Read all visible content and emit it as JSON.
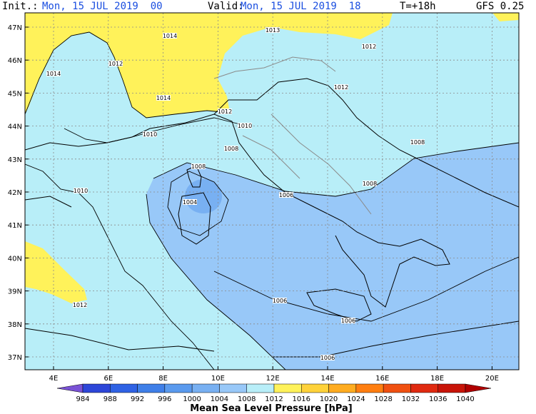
{
  "header": {
    "init_label": "Init.:",
    "init_value": "Mon, 15 JUL 2019  00",
    "valid_label": "Valid:",
    "valid_value": "Mon, 15 JUL 2019  18",
    "lead": "T=+18h",
    "model": "GFS 0.25"
  },
  "map": {
    "lat_labels": [
      "47N",
      "46N",
      "45N",
      "44N",
      "43N",
      "42N",
      "41N",
      "40N",
      "39N",
      "38N",
      "37N"
    ],
    "lon_labels": [
      "4E",
      "6E",
      "8E",
      "10E",
      "12E",
      "14E",
      "16E",
      "18E",
      "20E"
    ],
    "isobar_labels": [
      "1014",
      "1013",
      "1012",
      "1014",
      "1012",
      "1014",
      "1012",
      "1010",
      "1010",
      "1008",
      "1008",
      "1010",
      "1006",
      "1008",
      "1008",
      "1004",
      "1006",
      "1006",
      "1006",
      "1012",
      "1012"
    ]
  },
  "colorbar": {
    "title": "Mean Sea Level Pressure [hPa]",
    "levels": [
      984,
      988,
      992,
      996,
      1000,
      1004,
      1008,
      1012,
      1016,
      1020,
      1024,
      1028,
      1032,
      1036,
      1040
    ],
    "colors": [
      "#7a52d6",
      "#2d46d8",
      "#2f62e4",
      "#3f7fe8",
      "#5a9aee",
      "#78b0f2",
      "#98c8f8",
      "#b8eef8",
      "#fff25a",
      "#ffd23a",
      "#ffac20",
      "#ff7e10",
      "#f05010",
      "#e02a10",
      "#c81408",
      "#b00000"
    ]
  }
}
